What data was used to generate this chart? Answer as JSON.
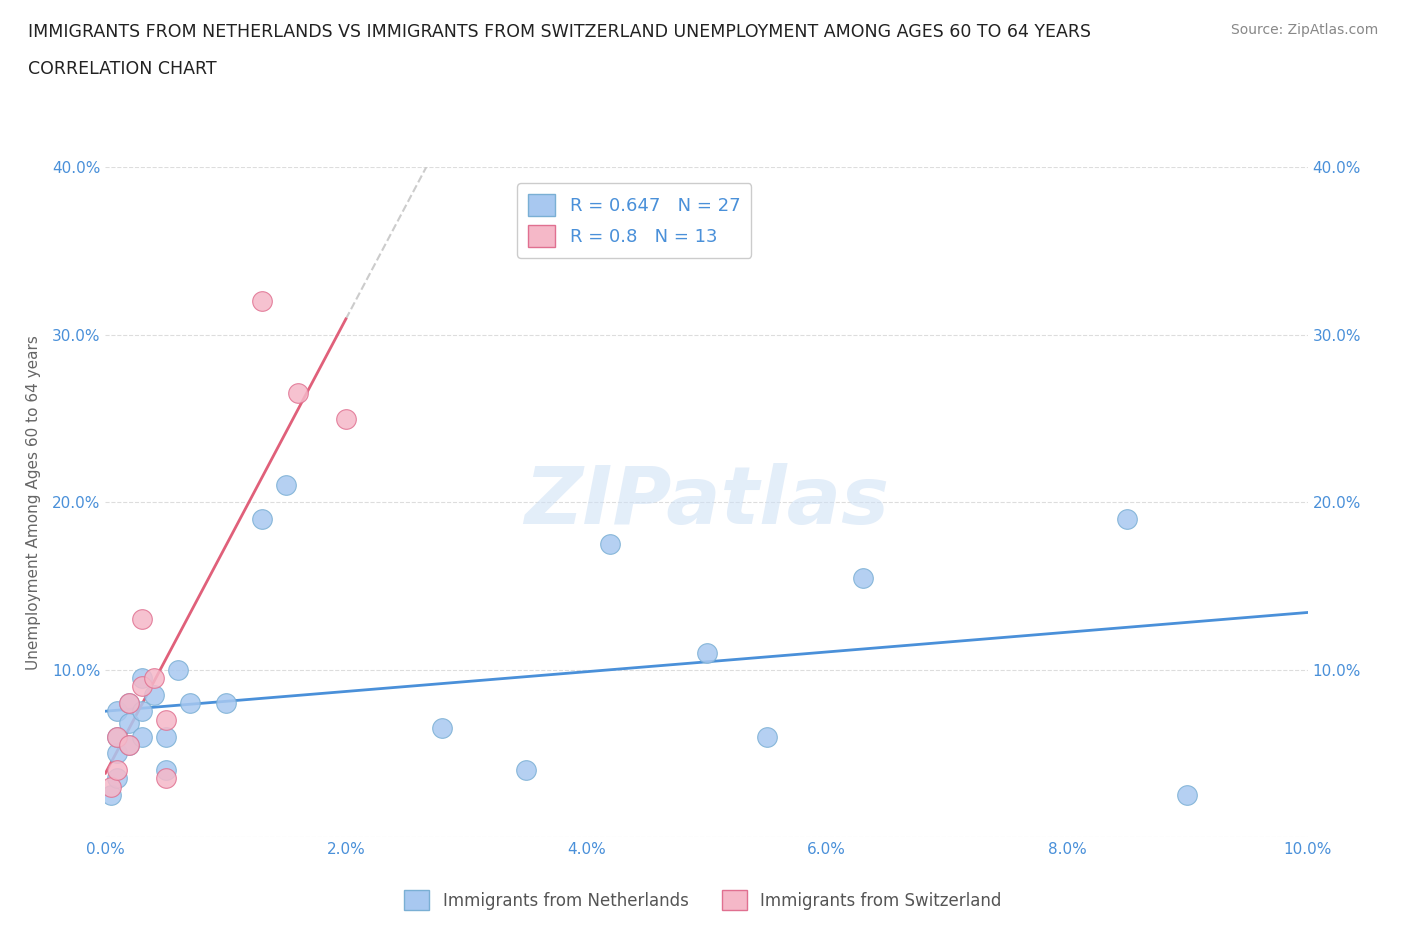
{
  "title_line1": "IMMIGRANTS FROM NETHERLANDS VS IMMIGRANTS FROM SWITZERLAND UNEMPLOYMENT AMONG AGES 60 TO 64 YEARS",
  "title_line2": "CORRELATION CHART",
  "source": "Source: ZipAtlas.com",
  "ylabel": "Unemployment Among Ages 60 to 64 years",
  "xlim": [
    0.0,
    0.1
  ],
  "ylim": [
    0.0,
    0.4
  ],
  "xtick_labels": [
    "0.0%",
    "2.0%",
    "4.0%",
    "6.0%",
    "8.0%",
    "10.0%"
  ],
  "xtick_values": [
    0.0,
    0.02,
    0.04,
    0.06,
    0.08,
    0.1
  ],
  "ytick_labels": [
    "",
    "10.0%",
    "20.0%",
    "30.0%",
    "40.0%"
  ],
  "ytick_values": [
    0.0,
    0.1,
    0.2,
    0.3,
    0.4
  ],
  "netherlands_x": [
    0.0005,
    0.001,
    0.001,
    0.001,
    0.001,
    0.002,
    0.002,
    0.002,
    0.003,
    0.003,
    0.003,
    0.004,
    0.005,
    0.005,
    0.006,
    0.007,
    0.01,
    0.013,
    0.015,
    0.028,
    0.035,
    0.042,
    0.05,
    0.055,
    0.063,
    0.085,
    0.09
  ],
  "netherlands_y": [
    0.025,
    0.035,
    0.05,
    0.06,
    0.075,
    0.055,
    0.068,
    0.08,
    0.06,
    0.075,
    0.095,
    0.085,
    0.04,
    0.06,
    0.1,
    0.08,
    0.08,
    0.19,
    0.21,
    0.065,
    0.04,
    0.175,
    0.11,
    0.06,
    0.155,
    0.19,
    0.025
  ],
  "switzerland_x": [
    0.0005,
    0.001,
    0.001,
    0.002,
    0.002,
    0.003,
    0.003,
    0.004,
    0.005,
    0.005,
    0.013,
    0.016,
    0.02
  ],
  "switzerland_y": [
    0.03,
    0.04,
    0.06,
    0.055,
    0.08,
    0.09,
    0.13,
    0.095,
    0.07,
    0.035,
    0.32,
    0.265,
    0.25
  ],
  "netherlands_color": "#a8c8f0",
  "netherlands_edge": "#7aafd4",
  "switzerland_color": "#f5b8c8",
  "switzerland_edge": "#e07090",
  "netherlands_R": 0.647,
  "netherlands_N": 27,
  "switzerland_R": 0.8,
  "switzerland_N": 13,
  "trendline_netherlands_color": "#4a90d9",
  "trendline_switzerland_color": "#e0607a",
  "trendline_ext_color": "#cccccc",
  "trendline_sw_solid_end": 0.02,
  "trendline_sw_ext_end": 0.06,
  "watermark_text": "ZIPatlas",
  "legend_label_netherlands": "Immigrants from Netherlands",
  "legend_label_switzerland": "Immigrants from Switzerland"
}
